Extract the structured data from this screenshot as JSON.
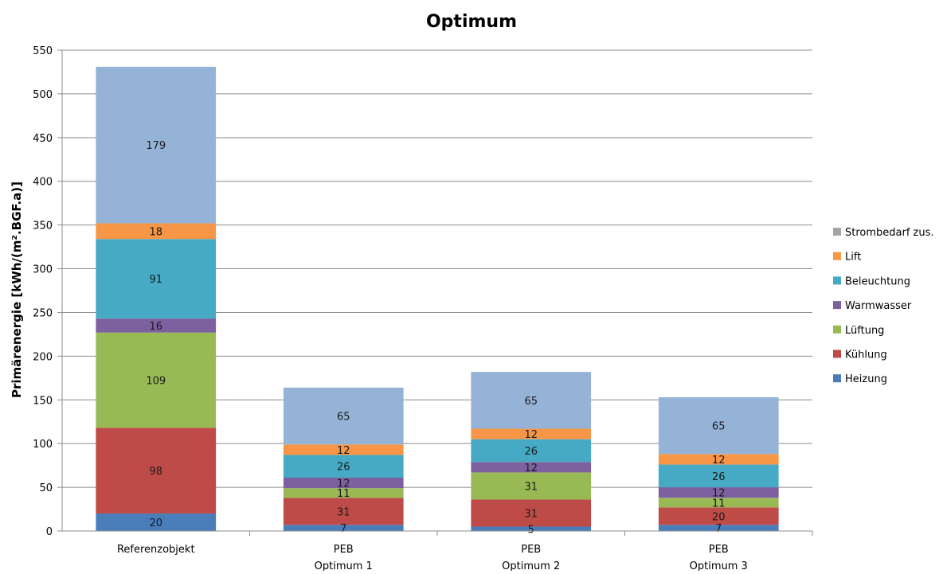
{
  "chart_data": {
    "type": "bar",
    "stacked": true,
    "title": "Optimum",
    "ylabel": "Primärenergie [kWh/(m².BGF.a)]",
    "xlabel": "",
    "ylim": [
      0,
      550
    ],
    "ytick_step": 50,
    "grid": true,
    "legend_position": "right",
    "categories": [
      [
        "Referenzobjekt"
      ],
      [
        "PEB",
        "Optimum 1"
      ],
      [
        "PEB",
        "Optimum 2"
      ],
      [
        "PEB",
        "Optimum 3"
      ]
    ],
    "series": [
      {
        "name": "Heizung",
        "color": "#4a7ebb",
        "values": [
          20,
          7,
          5,
          7
        ]
      },
      {
        "name": "Kühlung",
        "color": "#be4b48",
        "values": [
          98,
          31,
          31,
          20
        ]
      },
      {
        "name": "Lüftung",
        "color": "#98b954",
        "values": [
          109,
          11,
          31,
          11
        ]
      },
      {
        "name": "Warmwasser",
        "color": "#7d60a0",
        "values": [
          16,
          12,
          12,
          12
        ]
      },
      {
        "name": "Beleuchtung",
        "color": "#46aac5",
        "values": [
          91,
          26,
          26,
          26
        ]
      },
      {
        "name": "Lift",
        "color": "#f79646",
        "values": [
          18,
          12,
          12,
          12
        ]
      },
      {
        "name": "Strombedarf zus.",
        "color": "#a5a5a5",
        "values": [
          0,
          0,
          0,
          0
        ]
      },
      {
        "name": "",
        "color": "#95b3d7",
        "values": [
          179,
          65,
          65,
          65
        ]
      }
    ],
    "legend_order": [
      "Strombedarf zus.",
      "Lift",
      "Beleuchtung",
      "Warmwasser",
      "Lüftung",
      "Kühlung",
      "Heizung"
    ]
  }
}
